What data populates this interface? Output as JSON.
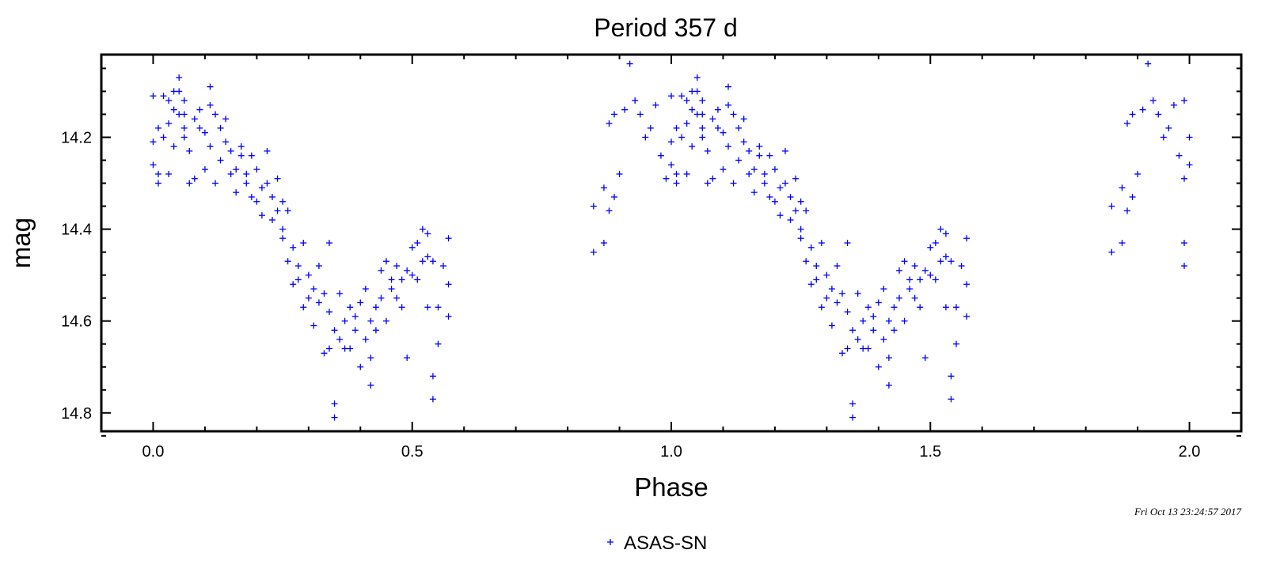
{
  "chart_data": {
    "type": "scatter",
    "title": "Period 357 d",
    "xlabel": "Phase",
    "ylabel": "mag",
    "xlim": [
      -0.1,
      2.1
    ],
    "ylim": [
      14.84,
      14.02
    ],
    "y_inverted": true,
    "xticks": [
      "0.0",
      "0.5",
      "1.0",
      "1.5",
      "2.0"
    ],
    "xtick_values": [
      0.0,
      0.5,
      1.0,
      1.5,
      2.0
    ],
    "yticks": [
      "14.2",
      "14.4",
      "14.6",
      "14.8"
    ],
    "ytick_values": [
      14.2,
      14.4,
      14.6,
      14.8
    ],
    "marker": "+",
    "color": "#0000ff",
    "legend": {
      "position": "bottom-center"
    },
    "timestamp": "Fri Oct 13 23:24:57 2017",
    "series": [
      {
        "name": "ASAS-SN",
        "note": "phase-folded light curve, each observation plotted at phase p and p+1",
        "points": [
          [
            0.0,
            14.11
          ],
          [
            0.0,
            14.21
          ],
          [
            0.0,
            14.26
          ],
          [
            0.01,
            14.28
          ],
          [
            0.01,
            14.3
          ],
          [
            0.01,
            14.18
          ],
          [
            0.02,
            14.11
          ],
          [
            0.02,
            14.2
          ],
          [
            0.03,
            14.28
          ],
          [
            0.03,
            14.17
          ],
          [
            0.03,
            14.12
          ],
          [
            0.04,
            14.1
          ],
          [
            0.04,
            14.14
          ],
          [
            0.04,
            14.22
          ],
          [
            0.05,
            14.15
          ],
          [
            0.05,
            14.07
          ],
          [
            0.05,
            14.1
          ],
          [
            0.06,
            14.15
          ],
          [
            0.06,
            14.2
          ],
          [
            0.06,
            14.12
          ],
          [
            0.06,
            14.18
          ],
          [
            0.07,
            14.3
          ],
          [
            0.07,
            14.23
          ],
          [
            0.08,
            14.16
          ],
          [
            0.08,
            14.29
          ],
          [
            0.09,
            14.14
          ],
          [
            0.09,
            14.18
          ],
          [
            0.1,
            14.19
          ],
          [
            0.1,
            14.27
          ],
          [
            0.11,
            14.22
          ],
          [
            0.11,
            14.13
          ],
          [
            0.11,
            14.09
          ],
          [
            0.12,
            14.3
          ],
          [
            0.12,
            14.15
          ],
          [
            0.13,
            14.25
          ],
          [
            0.13,
            14.18
          ],
          [
            0.14,
            14.16
          ],
          [
            0.14,
            14.21
          ],
          [
            0.15,
            14.28
          ],
          [
            0.15,
            14.23
          ],
          [
            0.16,
            14.27
          ],
          [
            0.16,
            14.32
          ],
          [
            0.17,
            14.22
          ],
          [
            0.17,
            14.24
          ],
          [
            0.18,
            14.3
          ],
          [
            0.18,
            14.28
          ],
          [
            0.19,
            14.33
          ],
          [
            0.19,
            14.24
          ],
          [
            0.2,
            14.34
          ],
          [
            0.2,
            14.27
          ],
          [
            0.21,
            14.31
          ],
          [
            0.21,
            14.37
          ],
          [
            0.22,
            14.3
          ],
          [
            0.22,
            14.23
          ],
          [
            0.23,
            14.38
          ],
          [
            0.23,
            14.33
          ],
          [
            0.24,
            14.29
          ],
          [
            0.24,
            14.36
          ],
          [
            0.25,
            14.4
          ],
          [
            0.25,
            14.34
          ],
          [
            0.25,
            14.42
          ],
          [
            0.26,
            14.47
          ],
          [
            0.26,
            14.36
          ],
          [
            0.27,
            14.52
          ],
          [
            0.27,
            14.44
          ],
          [
            0.28,
            14.51
          ],
          [
            0.28,
            14.48
          ],
          [
            0.29,
            14.57
          ],
          [
            0.29,
            14.43
          ],
          [
            0.3,
            14.55
          ],
          [
            0.3,
            14.5
          ],
          [
            0.31,
            14.61
          ],
          [
            0.31,
            14.53
          ],
          [
            0.32,
            14.56
          ],
          [
            0.32,
            14.48
          ],
          [
            0.33,
            14.54
          ],
          [
            0.33,
            14.67
          ],
          [
            0.34,
            14.58
          ],
          [
            0.34,
            14.43
          ],
          [
            0.34,
            14.66
          ],
          [
            0.35,
            14.78
          ],
          [
            0.35,
            14.81
          ],
          [
            0.35,
            14.62
          ],
          [
            0.36,
            14.54
          ],
          [
            0.36,
            14.64
          ],
          [
            0.37,
            14.6
          ],
          [
            0.37,
            14.66
          ],
          [
            0.38,
            14.57
          ],
          [
            0.38,
            14.66
          ],
          [
            0.39,
            14.59
          ],
          [
            0.39,
            14.62
          ],
          [
            0.4,
            14.56
          ],
          [
            0.4,
            14.7
          ],
          [
            0.41,
            14.53
          ],
          [
            0.41,
            14.64
          ],
          [
            0.42,
            14.6
          ],
          [
            0.42,
            14.68
          ],
          [
            0.42,
            14.74
          ],
          [
            0.43,
            14.57
          ],
          [
            0.43,
            14.62
          ],
          [
            0.44,
            14.55
          ],
          [
            0.44,
            14.49
          ],
          [
            0.45,
            14.6
          ],
          [
            0.45,
            14.47
          ],
          [
            0.46,
            14.53
          ],
          [
            0.46,
            14.51
          ],
          [
            0.47,
            14.55
          ],
          [
            0.47,
            14.48
          ],
          [
            0.48,
            14.51
          ],
          [
            0.48,
            14.57
          ],
          [
            0.49,
            14.49
          ],
          [
            0.49,
            14.68
          ],
          [
            0.5,
            14.5
          ],
          [
            0.5,
            14.44
          ],
          [
            0.51,
            14.51
          ],
          [
            0.51,
            14.43
          ],
          [
            0.52,
            14.47
          ],
          [
            0.52,
            14.4
          ],
          [
            0.53,
            14.46
          ],
          [
            0.53,
            14.41
          ],
          [
            0.53,
            14.57
          ],
          [
            0.54,
            14.47
          ],
          [
            0.54,
            14.72
          ],
          [
            0.54,
            14.77
          ],
          [
            0.55,
            14.57
          ],
          [
            0.55,
            14.65
          ],
          [
            0.56,
            14.48
          ],
          [
            0.57,
            14.52
          ],
          [
            0.57,
            14.59
          ],
          [
            0.57,
            14.42
          ],
          [
            0.85,
            14.35
          ],
          [
            0.85,
            14.45
          ],
          [
            0.87,
            14.43
          ],
          [
            0.87,
            14.31
          ],
          [
            0.88,
            14.36
          ],
          [
            0.88,
            14.17
          ],
          [
            0.89,
            14.33
          ],
          [
            0.89,
            14.15
          ],
          [
            0.9,
            14.28
          ],
          [
            0.91,
            14.14
          ],
          [
            0.92,
            14.04
          ],
          [
            0.93,
            14.12
          ],
          [
            0.94,
            14.15
          ],
          [
            0.95,
            14.2
          ],
          [
            0.96,
            14.18
          ],
          [
            0.97,
            14.13
          ],
          [
            0.98,
            14.24
          ],
          [
            0.99,
            14.29
          ],
          [
            1.0,
            14.11
          ],
          [
            1.0,
            14.21
          ],
          [
            1.0,
            14.26
          ],
          [
            1.01,
            14.28
          ],
          [
            1.01,
            14.3
          ],
          [
            1.01,
            14.18
          ],
          [
            1.02,
            14.11
          ],
          [
            1.02,
            14.2
          ],
          [
            1.03,
            14.28
          ],
          [
            1.03,
            14.17
          ],
          [
            1.03,
            14.12
          ],
          [
            1.04,
            14.1
          ],
          [
            1.04,
            14.14
          ],
          [
            1.04,
            14.22
          ],
          [
            1.05,
            14.15
          ],
          [
            1.05,
            14.07
          ],
          [
            1.05,
            14.1
          ],
          [
            1.06,
            14.15
          ],
          [
            1.06,
            14.2
          ],
          [
            1.06,
            14.12
          ],
          [
            1.06,
            14.18
          ],
          [
            1.07,
            14.3
          ],
          [
            1.07,
            14.23
          ],
          [
            1.08,
            14.16
          ],
          [
            1.08,
            14.29
          ],
          [
            1.09,
            14.14
          ],
          [
            1.09,
            14.18
          ],
          [
            1.1,
            14.19
          ],
          [
            1.1,
            14.27
          ],
          [
            1.11,
            14.22
          ],
          [
            1.11,
            14.13
          ],
          [
            1.11,
            14.09
          ],
          [
            1.12,
            14.3
          ],
          [
            1.12,
            14.15
          ],
          [
            1.13,
            14.25
          ],
          [
            1.13,
            14.18
          ],
          [
            1.14,
            14.16
          ],
          [
            1.14,
            14.21
          ],
          [
            1.15,
            14.28
          ],
          [
            1.15,
            14.23
          ],
          [
            1.16,
            14.27
          ],
          [
            1.16,
            14.32
          ],
          [
            1.17,
            14.22
          ],
          [
            1.17,
            14.24
          ],
          [
            1.18,
            14.3
          ],
          [
            1.18,
            14.28
          ],
          [
            1.19,
            14.33
          ],
          [
            1.19,
            14.24
          ],
          [
            1.2,
            14.34
          ],
          [
            1.2,
            14.27
          ],
          [
            1.21,
            14.31
          ],
          [
            1.21,
            14.37
          ],
          [
            1.22,
            14.3
          ],
          [
            1.22,
            14.23
          ],
          [
            1.23,
            14.38
          ],
          [
            1.23,
            14.33
          ],
          [
            1.24,
            14.29
          ],
          [
            1.24,
            14.36
          ],
          [
            1.25,
            14.4
          ],
          [
            1.25,
            14.34
          ],
          [
            1.25,
            14.42
          ],
          [
            1.26,
            14.47
          ],
          [
            1.26,
            14.36
          ],
          [
            1.27,
            14.52
          ],
          [
            1.27,
            14.44
          ],
          [
            1.28,
            14.51
          ],
          [
            1.28,
            14.48
          ],
          [
            1.29,
            14.57
          ],
          [
            1.29,
            14.43
          ],
          [
            1.3,
            14.55
          ],
          [
            1.3,
            14.5
          ],
          [
            1.31,
            14.61
          ],
          [
            1.31,
            14.53
          ],
          [
            1.32,
            14.56
          ],
          [
            1.32,
            14.48
          ],
          [
            1.33,
            14.54
          ],
          [
            1.33,
            14.67
          ],
          [
            1.34,
            14.58
          ],
          [
            1.34,
            14.43
          ],
          [
            1.34,
            14.66
          ],
          [
            1.35,
            14.78
          ],
          [
            1.35,
            14.81
          ],
          [
            1.35,
            14.62
          ],
          [
            1.36,
            14.54
          ],
          [
            1.36,
            14.64
          ],
          [
            1.37,
            14.6
          ],
          [
            1.37,
            14.66
          ],
          [
            1.38,
            14.57
          ],
          [
            1.38,
            14.66
          ],
          [
            1.39,
            14.59
          ],
          [
            1.39,
            14.62
          ],
          [
            1.4,
            14.56
          ],
          [
            1.4,
            14.7
          ],
          [
            1.41,
            14.53
          ],
          [
            1.41,
            14.64
          ],
          [
            1.42,
            14.6
          ],
          [
            1.42,
            14.68
          ],
          [
            1.42,
            14.74
          ],
          [
            1.43,
            14.57
          ],
          [
            1.43,
            14.62
          ],
          [
            1.44,
            14.55
          ],
          [
            1.44,
            14.49
          ],
          [
            1.45,
            14.6
          ],
          [
            1.45,
            14.47
          ],
          [
            1.46,
            14.53
          ],
          [
            1.46,
            14.51
          ],
          [
            1.47,
            14.55
          ],
          [
            1.47,
            14.48
          ],
          [
            1.48,
            14.51
          ],
          [
            1.48,
            14.57
          ],
          [
            1.49,
            14.49
          ],
          [
            1.49,
            14.68
          ],
          [
            1.5,
            14.5
          ],
          [
            1.5,
            14.44
          ],
          [
            1.51,
            14.51
          ],
          [
            1.51,
            14.43
          ],
          [
            1.52,
            14.47
          ],
          [
            1.52,
            14.4
          ],
          [
            1.53,
            14.46
          ],
          [
            1.53,
            14.41
          ],
          [
            1.53,
            14.57
          ],
          [
            1.54,
            14.47
          ],
          [
            1.54,
            14.72
          ],
          [
            1.54,
            14.77
          ],
          [
            1.55,
            14.57
          ],
          [
            1.55,
            14.65
          ],
          [
            1.56,
            14.48
          ],
          [
            1.57,
            14.52
          ],
          [
            1.57,
            14.59
          ],
          [
            1.57,
            14.42
          ],
          [
            1.85,
            14.35
          ],
          [
            1.85,
            14.45
          ],
          [
            1.87,
            14.43
          ],
          [
            1.87,
            14.31
          ],
          [
            1.88,
            14.36
          ],
          [
            1.88,
            14.17
          ],
          [
            1.89,
            14.33
          ],
          [
            1.89,
            14.15
          ],
          [
            1.9,
            14.28
          ],
          [
            1.91,
            14.14
          ],
          [
            1.92,
            14.04
          ],
          [
            1.93,
            14.12
          ],
          [
            1.94,
            14.15
          ],
          [
            1.95,
            14.2
          ],
          [
            1.96,
            14.18
          ],
          [
            1.97,
            14.13
          ],
          [
            1.98,
            14.24
          ],
          [
            1.99,
            14.29
          ],
          [
            1.99,
            14.43
          ],
          [
            1.99,
            14.48
          ],
          [
            1.99,
            14.12
          ],
          [
            2.0,
            14.2
          ],
          [
            2.0,
            14.26
          ]
        ]
      }
    ]
  }
}
